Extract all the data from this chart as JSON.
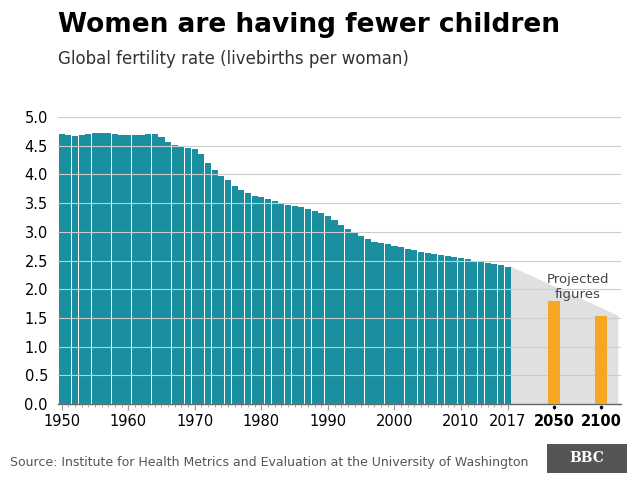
{
  "title": "Women are having fewer children",
  "subtitle": "Global fertility rate (livebirths per woman)",
  "source": "Source: Institute for Health Metrics and Evaluation at the University of Washington",
  "bar_color": "#1a8fa0",
  "projected_bar_color": "#f5a623",
  "projected_bg_color": "#e0e0e0",
  "years": [
    1950,
    1951,
    1952,
    1953,
    1954,
    1955,
    1956,
    1957,
    1958,
    1959,
    1960,
    1961,
    1962,
    1963,
    1964,
    1965,
    1966,
    1967,
    1968,
    1969,
    1970,
    1971,
    1972,
    1973,
    1974,
    1975,
    1976,
    1977,
    1978,
    1979,
    1980,
    1981,
    1982,
    1983,
    1984,
    1985,
    1986,
    1987,
    1988,
    1989,
    1990,
    1991,
    1992,
    1993,
    1994,
    1995,
    1996,
    1997,
    1998,
    1999,
    2000,
    2001,
    2002,
    2003,
    2004,
    2005,
    2006,
    2007,
    2008,
    2009,
    2010,
    2011,
    2012,
    2013,
    2014,
    2015,
    2016,
    2017
  ],
  "values": [
    4.7,
    4.68,
    4.67,
    4.68,
    4.7,
    4.72,
    4.73,
    4.72,
    4.7,
    4.68,
    4.68,
    4.68,
    4.69,
    4.7,
    4.7,
    4.65,
    4.57,
    4.52,
    4.5,
    4.47,
    4.44,
    4.35,
    4.2,
    4.08,
    3.98,
    3.9,
    3.8,
    3.73,
    3.67,
    3.62,
    3.6,
    3.57,
    3.54,
    3.5,
    3.47,
    3.45,
    3.43,
    3.4,
    3.37,
    3.33,
    3.28,
    3.2,
    3.12,
    3.05,
    2.98,
    2.92,
    2.87,
    2.83,
    2.8,
    2.78,
    2.76,
    2.73,
    2.7,
    2.68,
    2.65,
    2.63,
    2.62,
    2.6,
    2.58,
    2.56,
    2.54,
    2.52,
    2.5,
    2.48,
    2.46,
    2.44,
    2.42,
    2.38
  ],
  "projected_values": [
    1.79,
    1.53
  ],
  "ylim": [
    0,
    5.0
  ],
  "yticks": [
    0.0,
    0.5,
    1.0,
    1.5,
    2.0,
    2.5,
    3.0,
    3.5,
    4.0,
    4.5,
    5.0
  ],
  "bg_color": "#ffffff",
  "grid_color": "#cccccc",
  "title_fontsize": 19,
  "subtitle_fontsize": 12,
  "axis_fontsize": 10.5,
  "source_fontsize": 9
}
